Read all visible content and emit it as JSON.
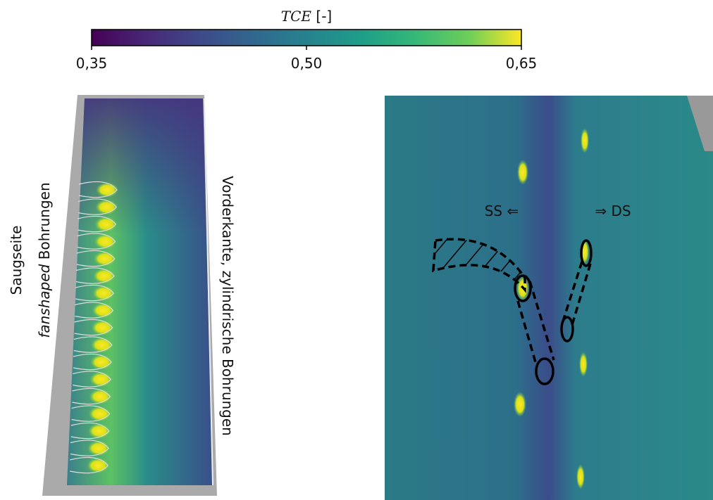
{
  "colorbar": {
    "title": "TCE",
    "unit": "[-]",
    "lim": [
      0.35,
      0.65
    ],
    "ticks": [
      {
        "value": 0.35,
        "label": "0,35"
      },
      {
        "value": 0.5,
        "label": "0,50"
      },
      {
        "value": 0.65,
        "label": "0,65"
      }
    ]
  },
  "left_image": {
    "label_line1": "Saugseite",
    "label_line2_italic": "fanshaped",
    "label_line2_rest": "Bohrungen",
    "right_label": "Vorderkante, zylindrische Bohrungen"
  },
  "right_image": {
    "ss_label": "SS ⇐",
    "ds_label": "⇒ DS"
  }
}
